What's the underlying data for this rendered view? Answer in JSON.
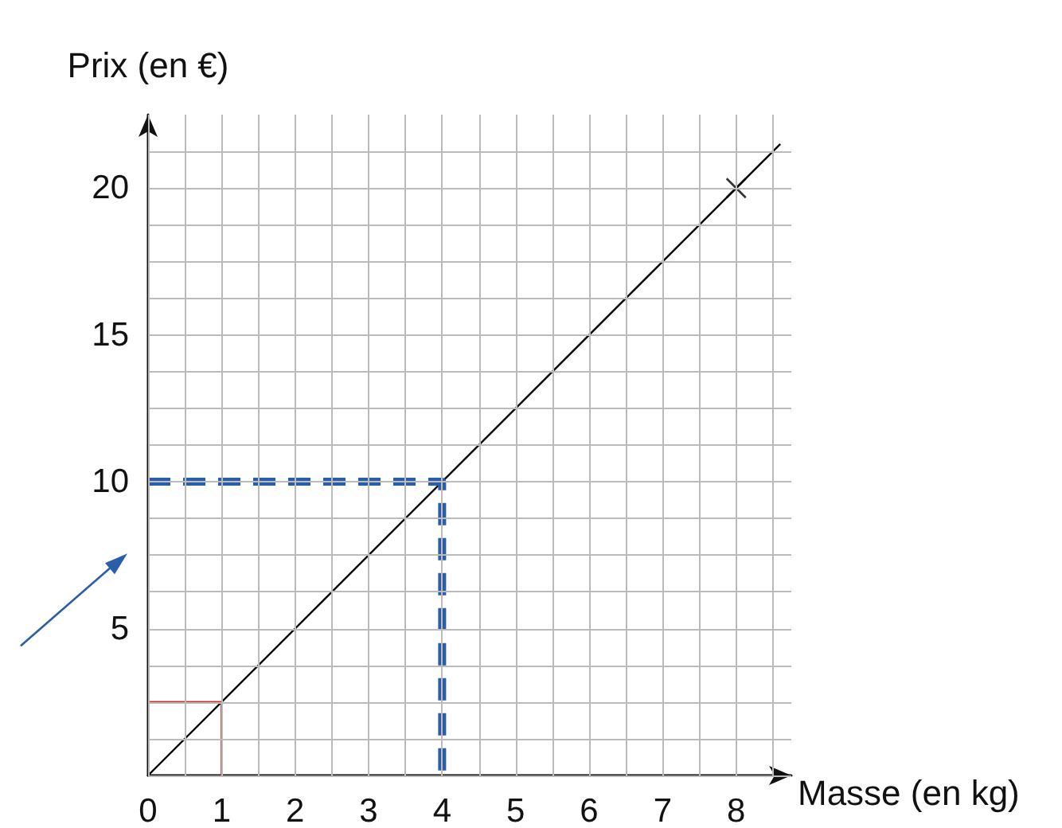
{
  "chart_data": {
    "type": "line",
    "xlabel": "Masse (en kg)",
    "ylabel": "Prix (en €)",
    "xlim": [
      0,
      8.75
    ],
    "ylim": [
      0,
      22.5
    ],
    "xticks": [
      0,
      {
        "value": 0.5,
        "label": null
      },
      1,
      {
        "value": 1.5,
        "label": null
      },
      2,
      {
        "value": 2.5,
        "label": null
      },
      3,
      {
        "value": 3.5,
        "label": null
      },
      4,
      {
        "value": 4.5,
        "label": null
      },
      5,
      {
        "value": 5.5,
        "label": null
      },
      6,
      {
        "value": 6.5,
        "label": null
      },
      7,
      {
        "value": 7.5,
        "label": null
      },
      8,
      {
        "value": 8.5,
        "label": null
      }
    ],
    "yticks": [
      {
        "value": 0,
        "label": null
      },
      {
        "value": 1.25,
        "label": null
      },
      {
        "value": 2.5,
        "label": null
      },
      {
        "value": 3.75,
        "label": null
      },
      5,
      {
        "value": 6.25,
        "label": null
      },
      {
        "value": 7.5,
        "label": null
      },
      {
        "value": 8.75,
        "label": null
      },
      10,
      {
        "value": 11.25,
        "label": null
      },
      {
        "value": 12.5,
        "label": null
      },
      {
        "value": 13.75,
        "label": null
      },
      15,
      {
        "value": 16.25,
        "label": null
      },
      {
        "value": 17.5,
        "label": null
      },
      {
        "value": 18.75,
        "label": null
      },
      20,
      {
        "value": 21.25,
        "label": null
      }
    ],
    "grid": true,
    "series": [
      {
        "color": "#000000",
        "x": [
          0,
          8.6
        ],
        "values": [
          0,
          21.5
        ],
        "marker": "none",
        "line_style": "solid"
      },
      {
        "type": "scatter",
        "color": "#000000",
        "x": [
          8
        ],
        "values": [
          20
        ],
        "marker": "cross"
      },
      {
        "color": "#2a5ea8",
        "x": [
          0,
          4,
          4
        ],
        "values": [
          10,
          10,
          0
        ],
        "marker": "none",
        "line_style": "dashed"
      },
      {
        "color": "#d03030",
        "x": [
          0,
          1,
          1
        ],
        "values": [
          2.5,
          2.5,
          0
        ],
        "marker": "none",
        "line_style": "solid"
      }
    ]
  }
}
